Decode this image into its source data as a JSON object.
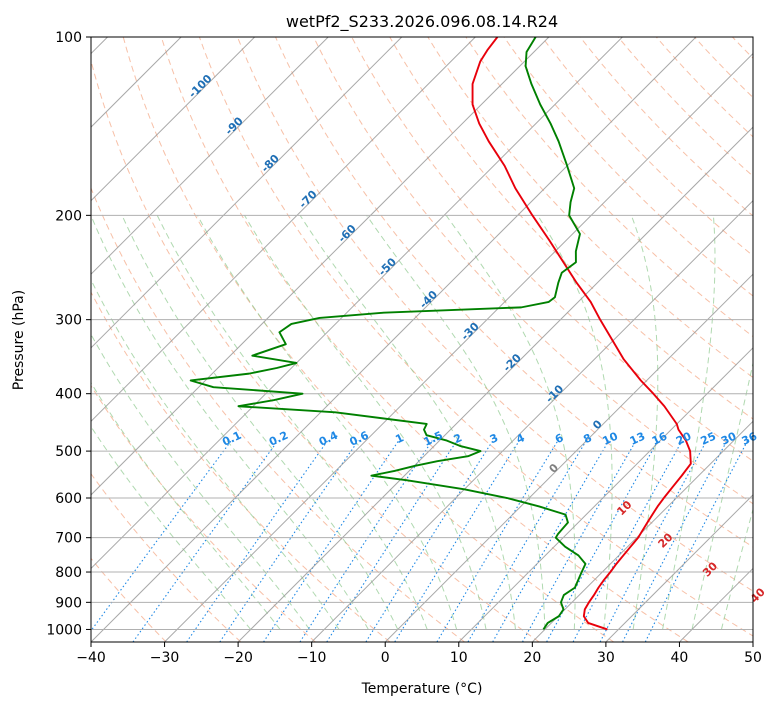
{
  "chart_data": {
    "type": "line",
    "diagram": "skew-T log-p",
    "title": "wetPf2_S233.2026.096.08.14.R24",
    "xlabel": "Temperature (°C)",
    "ylabel": "Pressure (hPa)",
    "xlim": [
      -40,
      50
    ],
    "ylim": [
      1050,
      100
    ],
    "y_scale": "log",
    "x_ticks": [
      "−40",
      "−30",
      "−20",
      "−10",
      "0",
      "10",
      "20",
      "30",
      "40",
      "50"
    ],
    "y_ticks": [
      "100",
      "200",
      "300",
      "400",
      "500",
      "600",
      "700",
      "800",
      "900",
      "1000"
    ],
    "grid": true,
    "colors": {
      "temperature": "#e8000b",
      "dewpoint": "#008000",
      "isotherm": "#9a9a9a",
      "dry_adiabat": "#f4a582",
      "moist_adiabat": "#8fc98f",
      "mixing_ratio": "#1e88e5",
      "isotherm_label": "#1f6fb5",
      "adiabat_label": "#d62728"
    },
    "isotherm_labels": [
      "-100",
      "-90",
      "-80",
      "-70",
      "-60",
      "-50",
      "-40",
      "-30",
      "-20",
      "-10",
      "0"
    ],
    "dry_adiabat_labels": [
      "10",
      "20",
      "30",
      "40"
    ],
    "mixing_ratio_labels": [
      "0.1",
      "0.2",
      "0.4",
      "0.6",
      "1",
      "1.5",
      "2",
      "3",
      "4",
      "6",
      "8",
      "10",
      "13",
      "16",
      "20",
      "25",
      "30",
      "36"
    ],
    "series": [
      {
        "key": "temperature",
        "points": [
          {
            "p": 1000,
            "t": 28.5
          },
          {
            "p": 975,
            "t": 25.0
          },
          {
            "p": 950,
            "t": 23.5
          },
          {
            "p": 925,
            "t": 22.7
          },
          {
            "p": 900,
            "t": 22.3
          },
          {
            "p": 875,
            "t": 22.0
          },
          {
            "p": 850,
            "t": 21.6
          },
          {
            "p": 825,
            "t": 21.3
          },
          {
            "p": 800,
            "t": 21.1
          },
          {
            "p": 775,
            "t": 20.8
          },
          {
            "p": 750,
            "t": 20.6
          },
          {
            "p": 725,
            "t": 20.4
          },
          {
            "p": 700,
            "t": 20.2
          },
          {
            "p": 680,
            "t": 19.8
          },
          {
            "p": 660,
            "t": 19.4
          },
          {
            "p": 640,
            "t": 19.0
          },
          {
            "p": 620,
            "t": 18.6
          },
          {
            "p": 600,
            "t": 18.3
          },
          {
            "p": 575,
            "t": 18.0
          },
          {
            "p": 550,
            "t": 17.7
          },
          {
            "p": 525,
            "t": 17.3
          },
          {
            "p": 500,
            "t": 15.5
          },
          {
            "p": 480,
            "t": 13.5
          },
          {
            "p": 460,
            "t": 11.0
          },
          {
            "p": 450,
            "t": 10.0
          },
          {
            "p": 420,
            "t": 5.9
          },
          {
            "p": 400,
            "t": 2.7
          },
          {
            "p": 380,
            "t": -0.8
          },
          {
            "p": 350,
            "t": -6.0
          },
          {
            "p": 320,
            "t": -11.0
          },
          {
            "p": 300,
            "t": -14.6
          },
          {
            "p": 280,
            "t": -18.3
          },
          {
            "p": 260,
            "t": -22.8
          },
          {
            "p": 240,
            "t": -27.4
          },
          {
            "p": 220,
            "t": -32.4
          },
          {
            "p": 200,
            "t": -38.0
          },
          {
            "p": 180,
            "t": -44.0
          },
          {
            "p": 165,
            "t": -48.5
          },
          {
            "p": 150,
            "t": -54.0
          },
          {
            "p": 140,
            "t": -57.7
          },
          {
            "p": 130,
            "t": -61.2
          },
          {
            "p": 120,
            "t": -64.0
          },
          {
            "p": 110,
            "t": -66.0
          },
          {
            "p": 105,
            "t": -66.6
          },
          {
            "p": 100,
            "t": -67.0
          }
        ]
      },
      {
        "key": "dewpoint",
        "points": [
          {
            "p": 1000,
            "t": 19.8
          },
          {
            "p": 975,
            "t": 19.5
          },
          {
            "p": 950,
            "t": 20.1
          },
          {
            "p": 925,
            "t": 19.8
          },
          {
            "p": 900,
            "t": 18.5
          },
          {
            "p": 875,
            "t": 17.9
          },
          {
            "p": 850,
            "t": 18.4
          },
          {
            "p": 825,
            "t": 17.8
          },
          {
            "p": 800,
            "t": 17.2
          },
          {
            "p": 775,
            "t": 16.6
          },
          {
            "p": 750,
            "t": 14.5
          },
          {
            "p": 725,
            "t": 11.5
          },
          {
            "p": 700,
            "t": 9.0
          },
          {
            "p": 690,
            "t": 8.8
          },
          {
            "p": 660,
            "t": 8.6
          },
          {
            "p": 640,
            "t": 7.2
          },
          {
            "p": 620,
            "t": 2.5
          },
          {
            "p": 600,
            "t": -3.0
          },
          {
            "p": 580,
            "t": -10.0
          },
          {
            "p": 560,
            "t": -19.0
          },
          {
            "p": 550,
            "t": -24.5
          },
          {
            "p": 540,
            "t": -22.0
          },
          {
            "p": 530,
            "t": -20.0
          },
          {
            "p": 520,
            "t": -17.5
          },
          {
            "p": 510,
            "t": -14.0
          },
          {
            "p": 500,
            "t": -13.0
          },
          {
            "p": 490,
            "t": -16.5
          },
          {
            "p": 480,
            "t": -19.0
          },
          {
            "p": 470,
            "t": -22.5
          },
          {
            "p": 460,
            "t": -23.6
          },
          {
            "p": 450,
            "t": -24.0
          },
          {
            "p": 430,
            "t": -38.0
          },
          {
            "p": 420,
            "t": -52.0
          },
          {
            "p": 410,
            "t": -48.0
          },
          {
            "p": 400,
            "t": -45.0
          },
          {
            "p": 390,
            "t": -58.0
          },
          {
            "p": 380,
            "t": -62.0
          },
          {
            "p": 370,
            "t": -55.0
          },
          {
            "p": 362,
            "t": -52.0
          },
          {
            "p": 355,
            "t": -50.0
          },
          {
            "p": 345,
            "t": -57.0
          },
          {
            "p": 330,
            "t": -54.0
          },
          {
            "p": 315,
            "t": -56.5
          },
          {
            "p": 305,
            "t": -56.0
          },
          {
            "p": 298,
            "t": -53.0
          },
          {
            "p": 292,
            "t": -45.0
          },
          {
            "p": 286,
            "t": -27.0
          },
          {
            "p": 280,
            "t": -24.0
          },
          {
            "p": 275,
            "t": -23.8
          },
          {
            "p": 260,
            "t": -25.3
          },
          {
            "p": 250,
            "t": -26.2
          },
          {
            "p": 240,
            "t": -25.7
          },
          {
            "p": 230,
            "t": -27.2
          },
          {
            "p": 215,
            "t": -29.0
          },
          {
            "p": 200,
            "t": -33.0
          },
          {
            "p": 190,
            "t": -34.6
          },
          {
            "p": 180,
            "t": -36.0
          },
          {
            "p": 165,
            "t": -40.0
          },
          {
            "p": 150,
            "t": -44.5
          },
          {
            "p": 140,
            "t": -48.0
          },
          {
            "p": 130,
            "t": -52.0
          },
          {
            "p": 120,
            "t": -56.0
          },
          {
            "p": 112,
            "t": -59.2
          },
          {
            "p": 106,
            "t": -61.0
          },
          {
            "p": 100,
            "t": -61.8
          }
        ]
      }
    ]
  }
}
